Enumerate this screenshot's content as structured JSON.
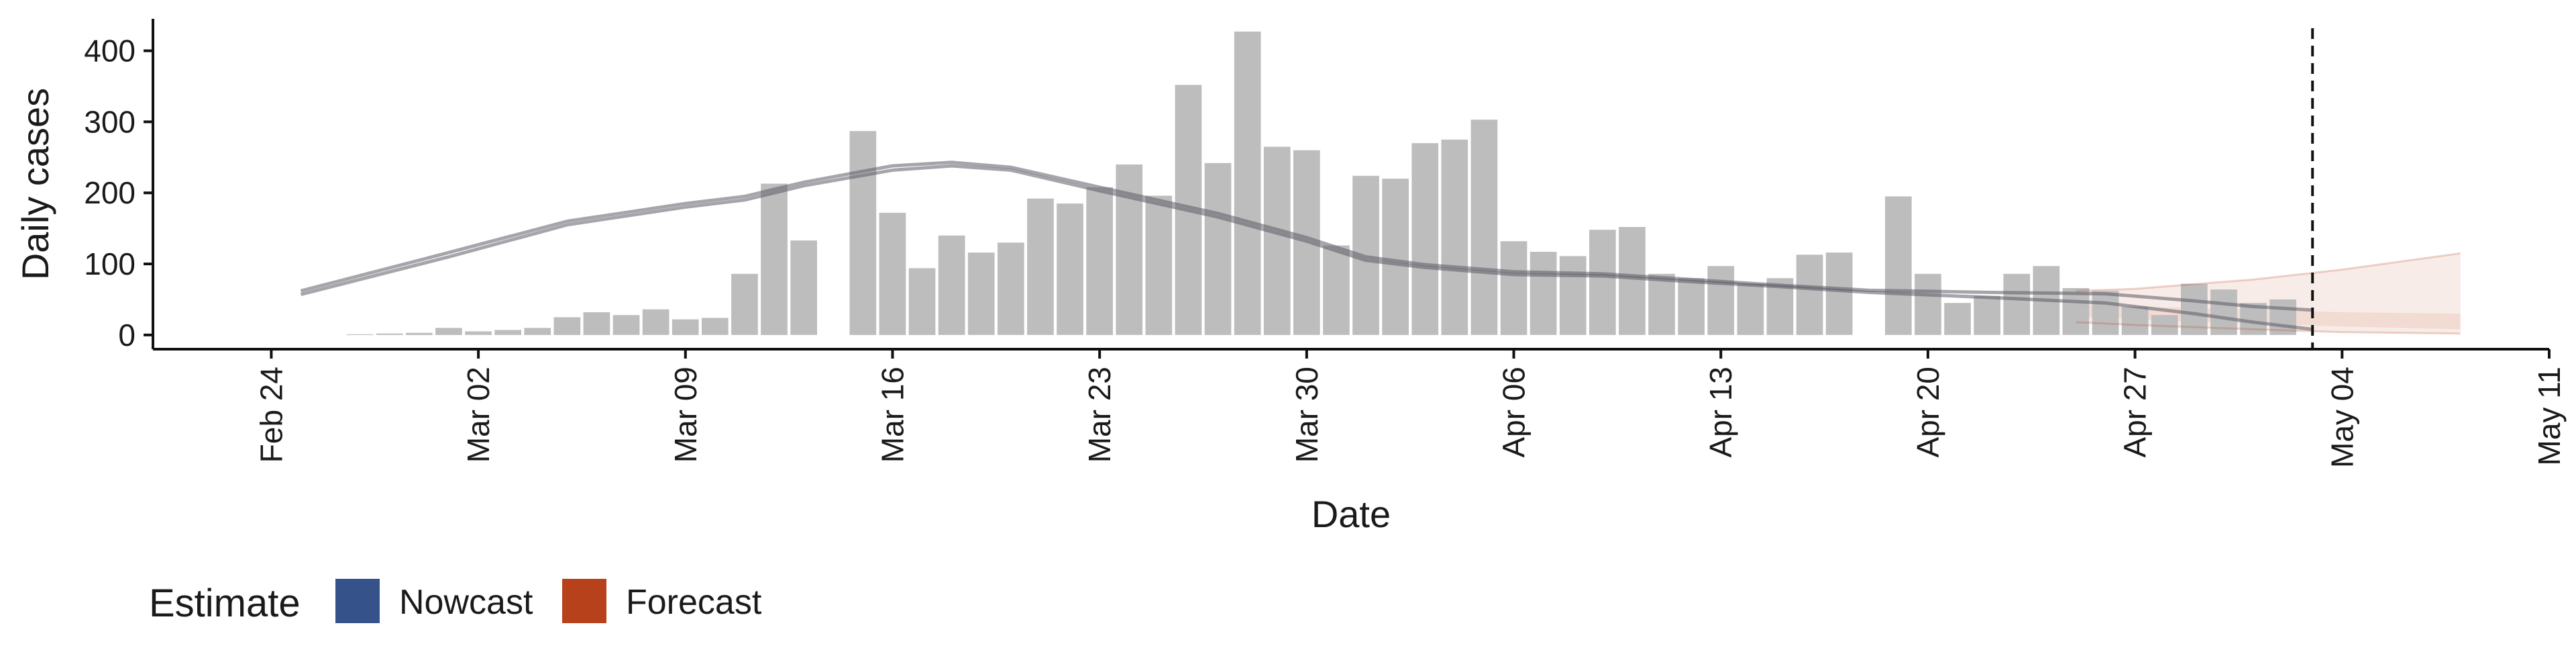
{
  "chart_data": {
    "type": "bar",
    "title": "",
    "xlabel": "Date",
    "ylabel": "Daily cases",
    "ylim": [
      -20,
      445
    ],
    "y_ticks": [
      0,
      100,
      200,
      300,
      400
    ],
    "x_range": [
      "2020-02-20",
      "2020-05-11"
    ],
    "x_ticks": [
      {
        "date": "2020-02-24",
        "label": "Feb 24"
      },
      {
        "date": "2020-03-02",
        "label": "Mar 02"
      },
      {
        "date": "2020-03-09",
        "label": "Mar 09"
      },
      {
        "date": "2020-03-16",
        "label": "Mar 16"
      },
      {
        "date": "2020-03-23",
        "label": "Mar 23"
      },
      {
        "date": "2020-03-30",
        "label": "Mar 30"
      },
      {
        "date": "2020-04-06",
        "label": "Apr 06"
      },
      {
        "date": "2020-04-13",
        "label": "Apr 13"
      },
      {
        "date": "2020-04-20",
        "label": "Apr 20"
      },
      {
        "date": "2020-04-27",
        "label": "Apr 27"
      },
      {
        "date": "2020-05-04",
        "label": "May 04"
      },
      {
        "date": "2020-05-11",
        "label": "May 11"
      }
    ],
    "bar_color": "#bdbdbd",
    "daily_cases": {
      "start_date": "2020-02-27",
      "values": [
        1,
        2,
        3,
        10,
        5,
        7,
        10,
        25,
        32,
        28,
        36,
        22,
        24,
        86,
        213,
        133,
        0,
        287,
        172,
        94,
        140,
        116,
        130,
        192,
        185,
        208,
        240,
        196,
        352,
        242,
        427,
        265,
        260,
        126,
        224,
        220,
        270,
        275,
        303,
        132,
        117,
        111,
        148,
        152,
        86,
        80,
        97,
        72,
        80,
        113,
        116,
        0,
        195,
        86,
        45,
        55,
        86,
        97,
        66,
        62,
        40,
        28,
        72,
        64,
        45,
        50
      ]
    },
    "vertical_line": {
      "date": "2020-05-03",
      "style": "dashed"
    },
    "series": [
      {
        "name": "Nowcast",
        "color": "#36528a",
        "lines": [
          [
            [
              "2020-02-25",
              57
            ],
            [
              "2020-03-01",
              110
            ],
            [
              "2020-03-05",
              155
            ],
            [
              "2020-03-09",
              180
            ],
            [
              "2020-03-11",
              190
            ],
            [
              "2020-03-13",
              210
            ],
            [
              "2020-03-16",
              232
            ],
            [
              "2020-03-18",
              238
            ],
            [
              "2020-03-20",
              232
            ],
            [
              "2020-03-23",
              203
            ],
            [
              "2020-03-27",
              166
            ],
            [
              "2020-03-30",
              132
            ],
            [
              "2020-04-01",
              105
            ],
            [
              "2020-04-03",
              95
            ],
            [
              "2020-04-06",
              85
            ],
            [
              "2020-04-09",
              83
            ],
            [
              "2020-04-12",
              75
            ],
            [
              "2020-04-15",
              68
            ],
            [
              "2020-04-18",
              60
            ],
            [
              "2020-04-22",
              53
            ],
            [
              "2020-04-26",
              45
            ],
            [
              "2020-04-29",
              30
            ],
            [
              "2020-05-01",
              18
            ],
            [
              "2020-05-03",
              8
            ]
          ],
          [
            [
              "2020-02-25",
              62
            ],
            [
              "2020-03-01",
              116
            ],
            [
              "2020-03-05",
              160
            ],
            [
              "2020-03-09",
              185
            ],
            [
              "2020-03-11",
              195
            ],
            [
              "2020-03-13",
              215
            ],
            [
              "2020-03-16",
              238
            ],
            [
              "2020-03-18",
              243
            ],
            [
              "2020-03-20",
              236
            ],
            [
              "2020-03-23",
              208
            ],
            [
              "2020-03-27",
              171
            ],
            [
              "2020-03-30",
              137
            ],
            [
              "2020-04-01",
              110
            ],
            [
              "2020-04-03",
              99
            ],
            [
              "2020-04-06",
              89
            ],
            [
              "2020-04-09",
              86
            ],
            [
              "2020-04-12",
              78
            ],
            [
              "2020-04-15",
              70
            ],
            [
              "2020-04-18",
              63
            ],
            [
              "2020-04-22",
              60
            ],
            [
              "2020-04-26",
              58
            ],
            [
              "2020-04-29",
              48
            ],
            [
              "2020-05-01",
              40
            ],
            [
              "2020-05-03",
              35
            ]
          ]
        ]
      },
      {
        "name": "Forecast",
        "color": "#b6411a",
        "lines": [
          [
            [
              "2020-04-25",
              62
            ],
            [
              "2020-04-27",
              65
            ],
            [
              "2020-05-01",
              78
            ],
            [
              "2020-05-04",
              92
            ],
            [
              "2020-05-08",
              115
            ]
          ],
          [
            [
              "2020-04-25",
              18
            ],
            [
              "2020-04-27",
              14
            ],
            [
              "2020-05-01",
              8
            ],
            [
              "2020-05-04",
              4
            ],
            [
              "2020-05-08",
              2
            ]
          ]
        ],
        "ribbons": [
          {
            "upper": [
              [
                "2020-04-25",
                62
              ],
              [
                "2020-04-27",
                65
              ],
              [
                "2020-05-01",
                78
              ],
              [
                "2020-05-04",
                92
              ],
              [
                "2020-05-08",
                115
              ]
            ],
            "lower": [
              [
                "2020-04-25",
                18
              ],
              [
                "2020-04-27",
                14
              ],
              [
                "2020-05-01",
                8
              ],
              [
                "2020-05-04",
                4
              ],
              [
                "2020-05-08",
                2
              ]
            ]
          },
          {
            "upper": [
              [
                "2020-04-25",
                42
              ],
              [
                "2020-04-27",
                40
              ],
              [
                "2020-05-01",
                36
              ],
              [
                "2020-05-04",
                32
              ],
              [
                "2020-05-08",
                30
              ]
            ],
            "lower": [
              [
                "2020-04-25",
                26
              ],
              [
                "2020-04-27",
                22
              ],
              [
                "2020-05-01",
                16
              ],
              [
                "2020-05-04",
                12
              ],
              [
                "2020-05-08",
                8
              ]
            ]
          }
        ]
      }
    ],
    "legend": {
      "title": "Estimate",
      "placement": "bottom-left",
      "items": [
        {
          "label": "Nowcast",
          "color": "#36528a"
        },
        {
          "label": "Forecast",
          "color": "#b6411a"
        }
      ]
    }
  }
}
